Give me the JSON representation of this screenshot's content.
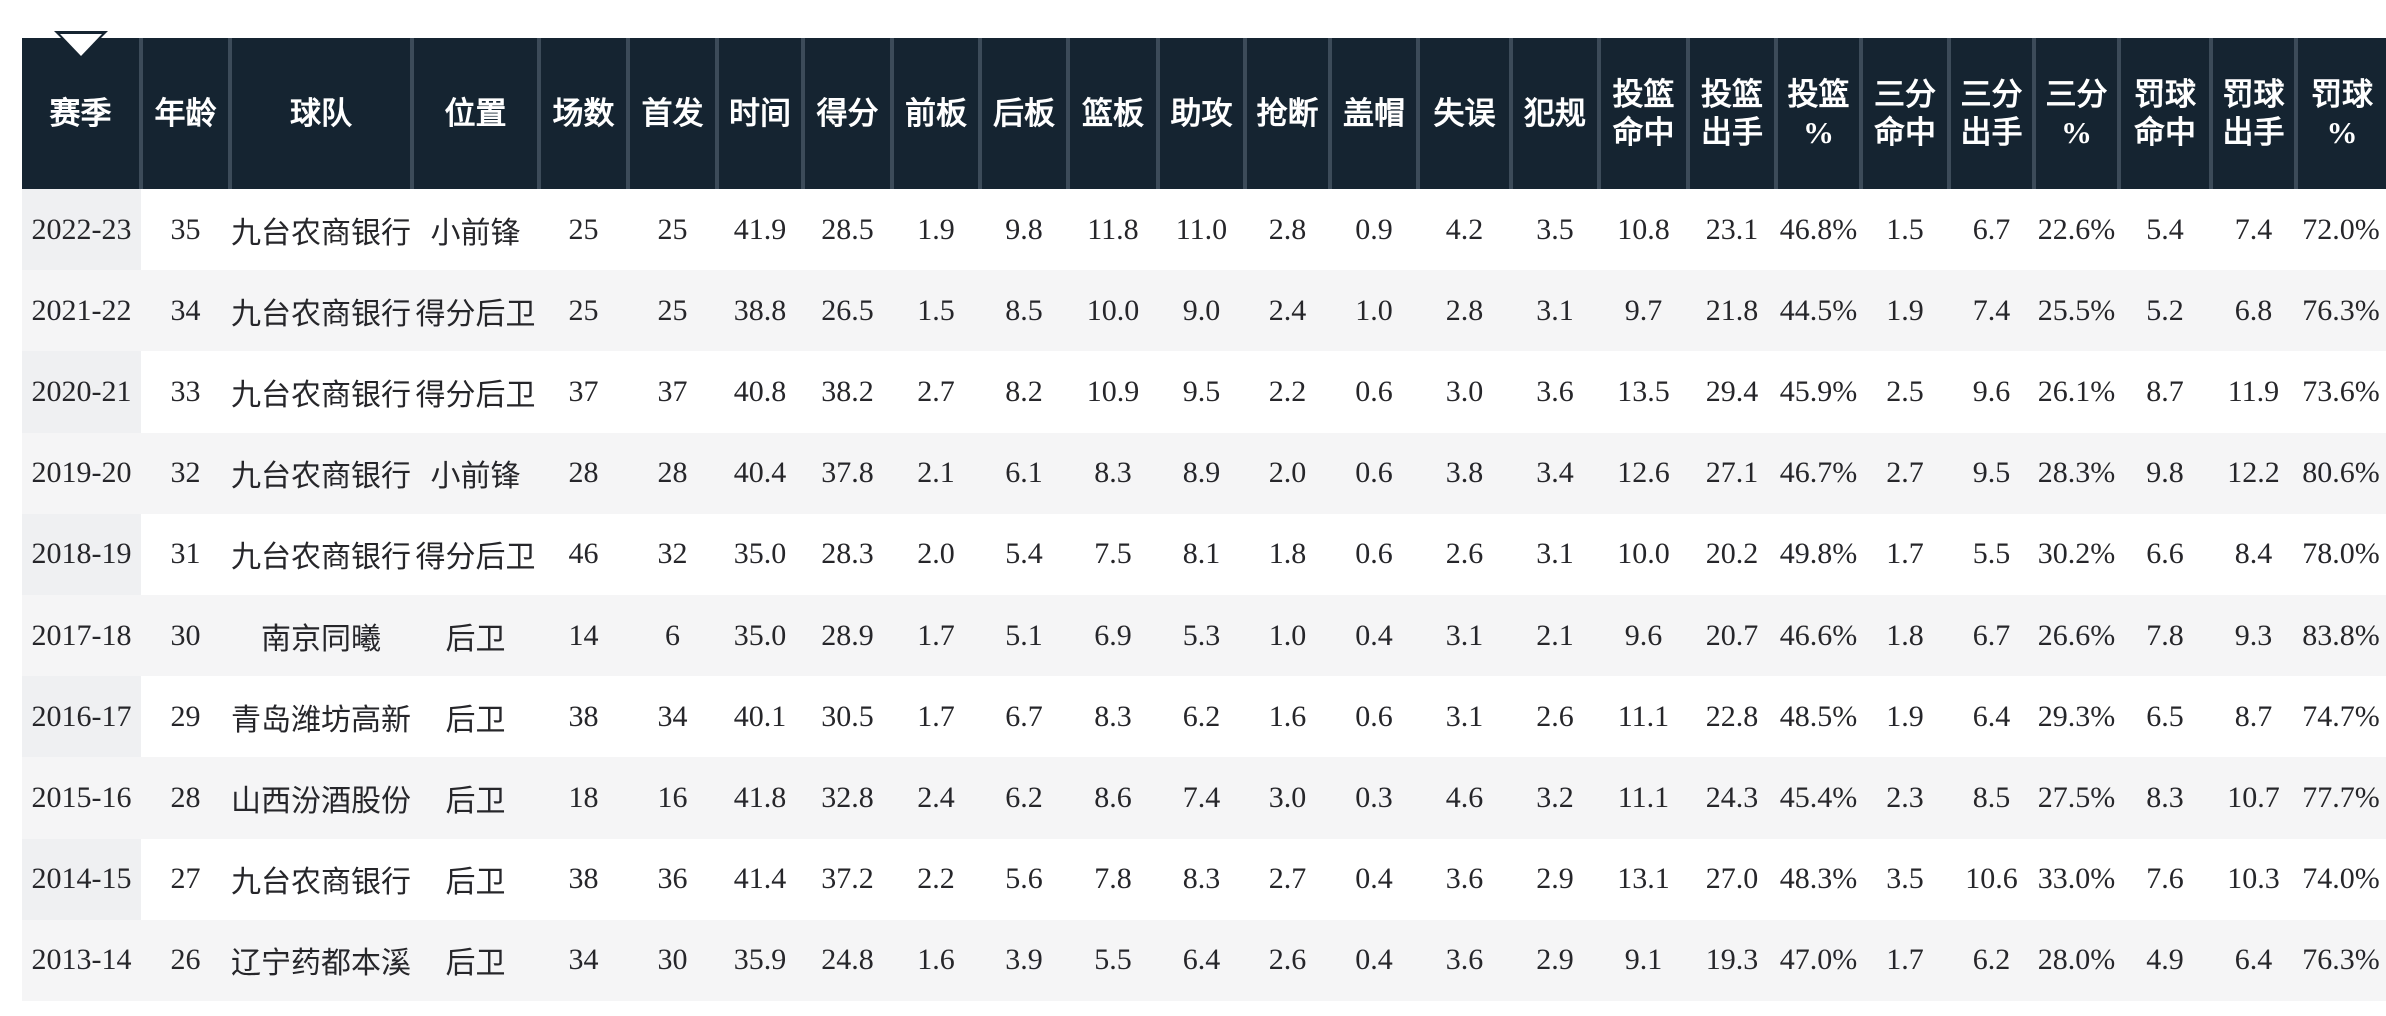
{
  "table": {
    "caret_icon": {
      "name": "chevron-up-icon",
      "over_column": "赛季"
    },
    "columns": [
      {
        "id": "season",
        "label": "赛季"
      },
      {
        "id": "age",
        "label": "年龄"
      },
      {
        "id": "team",
        "label": "球队"
      },
      {
        "id": "position",
        "label": "位置"
      },
      {
        "id": "games",
        "label": "场数"
      },
      {
        "id": "started",
        "label": "首发"
      },
      {
        "id": "minutes",
        "label": "时间"
      },
      {
        "id": "points",
        "label": "得分"
      },
      {
        "id": "off_rebounds",
        "label": "前板"
      },
      {
        "id": "def_rebounds",
        "label": "后板"
      },
      {
        "id": "rebounds",
        "label": "篮板"
      },
      {
        "id": "assists",
        "label": "助攻"
      },
      {
        "id": "steals",
        "label": "抢断"
      },
      {
        "id": "blocks",
        "label": "盖帽"
      },
      {
        "id": "turnovers",
        "label": "失误"
      },
      {
        "id": "fouls",
        "label": "犯规"
      },
      {
        "id": "fg_made",
        "label": "投篮\n命中"
      },
      {
        "id": "fg_att",
        "label": "投篮\n出手"
      },
      {
        "id": "fg_pct",
        "label": "投篮\n%"
      },
      {
        "id": "three_made",
        "label": "三分\n命中"
      },
      {
        "id": "three_att",
        "label": "三分\n出手"
      },
      {
        "id": "three_pct",
        "label": "三分\n%"
      },
      {
        "id": "ft_made",
        "label": "罚球\n命中"
      },
      {
        "id": "ft_att",
        "label": "罚球\n出手"
      },
      {
        "id": "ft_pct",
        "label": "罚球\n%"
      }
    ],
    "rows": [
      [
        "2022-23",
        "35",
        "九台农商银行",
        "小前锋",
        "25",
        "25",
        "41.9",
        "28.5",
        "1.9",
        "9.8",
        "11.8",
        "11.0",
        "2.8",
        "0.9",
        "4.2",
        "3.5",
        "10.8",
        "23.1",
        "46.8%",
        "1.5",
        "6.7",
        "22.6%",
        "5.4",
        "7.4",
        "72.0%"
      ],
      [
        "2021-22",
        "34",
        "九台农商银行",
        "得分后卫",
        "25",
        "25",
        "38.8",
        "26.5",
        "1.5",
        "8.5",
        "10.0",
        "9.0",
        "2.4",
        "1.0",
        "2.8",
        "3.1",
        "9.7",
        "21.8",
        "44.5%",
        "1.9",
        "7.4",
        "25.5%",
        "5.2",
        "6.8",
        "76.3%"
      ],
      [
        "2020-21",
        "33",
        "九台农商银行",
        "得分后卫",
        "37",
        "37",
        "40.8",
        "38.2",
        "2.7",
        "8.2",
        "10.9",
        "9.5",
        "2.2",
        "0.6",
        "3.0",
        "3.6",
        "13.5",
        "29.4",
        "45.9%",
        "2.5",
        "9.6",
        "26.1%",
        "8.7",
        "11.9",
        "73.6%"
      ],
      [
        "2019-20",
        "32",
        "九台农商银行",
        "小前锋",
        "28",
        "28",
        "40.4",
        "37.8",
        "2.1",
        "6.1",
        "8.3",
        "8.9",
        "2.0",
        "0.6",
        "3.8",
        "3.4",
        "12.6",
        "27.1",
        "46.7%",
        "2.7",
        "9.5",
        "28.3%",
        "9.8",
        "12.2",
        "80.6%"
      ],
      [
        "2018-19",
        "31",
        "九台农商银行",
        "得分后卫",
        "46",
        "32",
        "35.0",
        "28.3",
        "2.0",
        "5.4",
        "7.5",
        "8.1",
        "1.8",
        "0.6",
        "2.6",
        "3.1",
        "10.0",
        "20.2",
        "49.8%",
        "1.7",
        "5.5",
        "30.2%",
        "6.6",
        "8.4",
        "78.0%"
      ],
      [
        "2017-18",
        "30",
        "南京同曦",
        "后卫",
        "14",
        "6",
        "35.0",
        "28.9",
        "1.7",
        "5.1",
        "6.9",
        "5.3",
        "1.0",
        "0.4",
        "3.1",
        "2.1",
        "9.6",
        "20.7",
        "46.6%",
        "1.8",
        "6.7",
        "26.6%",
        "7.8",
        "9.3",
        "83.8%"
      ],
      [
        "2016-17",
        "29",
        "青岛潍坊高新",
        "后卫",
        "38",
        "34",
        "40.1",
        "30.5",
        "1.7",
        "6.7",
        "8.3",
        "6.2",
        "1.6",
        "0.6",
        "3.1",
        "2.6",
        "11.1",
        "22.8",
        "48.5%",
        "1.9",
        "6.4",
        "29.3%",
        "6.5",
        "8.7",
        "74.7%"
      ],
      [
        "2015-16",
        "28",
        "山西汾酒股份",
        "后卫",
        "18",
        "16",
        "41.8",
        "32.8",
        "2.4",
        "6.2",
        "8.6",
        "7.4",
        "3.0",
        "0.3",
        "4.6",
        "3.2",
        "11.1",
        "24.3",
        "45.4%",
        "2.3",
        "8.5",
        "27.5%",
        "8.3",
        "10.7",
        "77.7%"
      ],
      [
        "2014-15",
        "27",
        "九台农商银行",
        "后卫",
        "38",
        "36",
        "41.4",
        "37.2",
        "2.2",
        "5.6",
        "7.8",
        "8.3",
        "2.7",
        "0.4",
        "3.6",
        "2.9",
        "13.1",
        "27.0",
        "48.3%",
        "3.5",
        "10.6",
        "33.0%",
        "7.6",
        "10.3",
        "74.0%"
      ],
      [
        "2013-14",
        "26",
        "辽宁药都本溪",
        "后卫",
        "34",
        "30",
        "35.9",
        "24.8",
        "1.6",
        "3.9",
        "5.5",
        "6.4",
        "2.6",
        "0.4",
        "3.6",
        "2.9",
        "9.1",
        "19.3",
        "47.0%",
        "1.7",
        "6.2",
        "28.0%",
        "4.9",
        "6.4",
        "76.3%"
      ]
    ]
  },
  "colors": {
    "header_bg": "#152431",
    "header_text": "#ffffff",
    "header_divider": "#3c4b59",
    "row_stripe": "#f5f5f6",
    "first_column_bg": "#eff0f2",
    "body_text": "#26262a",
    "page_bg": "#ffffff"
  }
}
